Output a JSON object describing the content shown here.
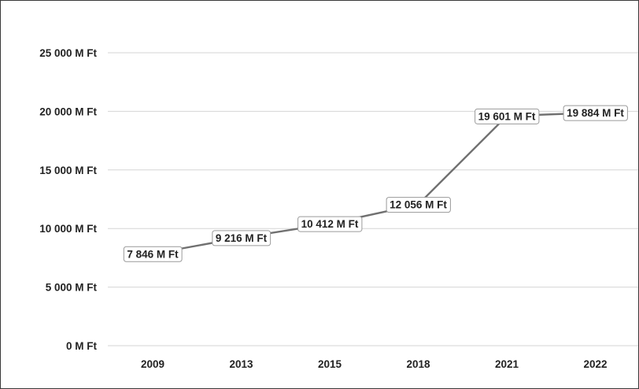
{
  "chart_data": {
    "type": "line",
    "categories": [
      "2009",
      "2013",
      "2015",
      "2018",
      "2021",
      "2022"
    ],
    "series": [
      {
        "values": [
          7846,
          9216,
          10412,
          12056,
          19601,
          19884
        ],
        "data_labels": [
          "7 846 M Ft",
          "9 216 M Ft",
          "10 412 M Ft",
          "12 056 M Ft",
          "19 601 M Ft",
          "19 884 M Ft"
        ]
      }
    ],
    "y_ticks": [
      0,
      5000,
      10000,
      15000,
      20000,
      25000
    ],
    "y_tick_labels": [
      "0 M Ft",
      "5 000 M Ft",
      "10 000 M Ft",
      "15 000 M Ft",
      "20 000 M Ft",
      "25 000 M Ft"
    ],
    "ylim": [
      0,
      25000
    ],
    "grid": "horizontal",
    "legend": "none",
    "line_color": "#707070",
    "grid_color": "#d6d6d6"
  }
}
